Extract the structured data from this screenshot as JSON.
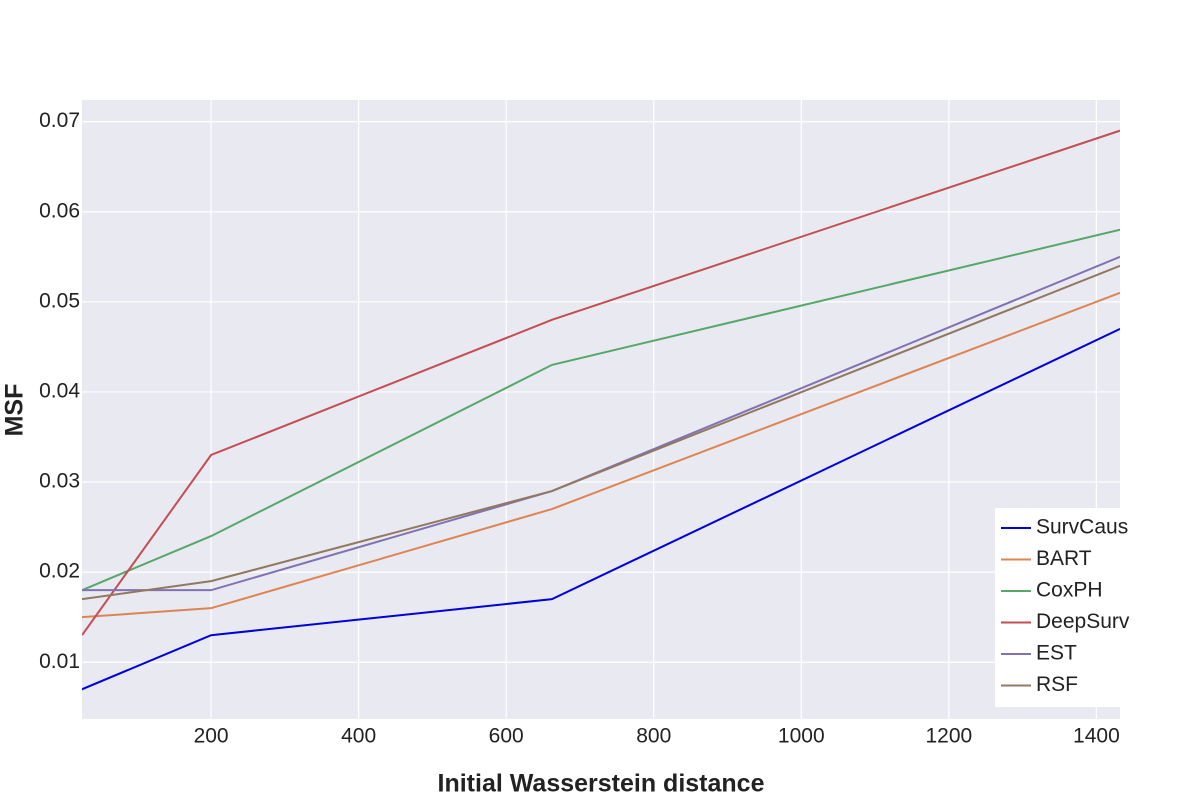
{
  "chart_data": {
    "type": "line",
    "xlabel": "Initial Wasserstein distance",
    "ylabel": "MSF",
    "x": [
      25,
      200,
      662,
      1432
    ],
    "series": [
      {
        "name": "SurvCaus",
        "color": "#0000dd",
        "values": [
          0.007,
          0.013,
          0.017,
          0.047
        ]
      },
      {
        "name": "BART",
        "color": "#dd8452",
        "values": [
          0.015,
          0.016,
          0.027,
          0.051
        ]
      },
      {
        "name": "CoxPH",
        "color": "#55a868",
        "values": [
          0.018,
          0.024,
          0.043,
          0.058
        ]
      },
      {
        "name": "DeepSurv",
        "color": "#c44e52",
        "values": [
          0.013,
          0.033,
          0.048,
          0.069
        ]
      },
      {
        "name": "EST",
        "color": "#8172b3",
        "values": [
          0.018,
          0.018,
          0.029,
          0.055
        ]
      },
      {
        "name": "RSF",
        "color": "#937860",
        "values": [
          0.017,
          0.019,
          0.029,
          0.054
        ]
      }
    ],
    "xlim": [
      25,
      1432
    ],
    "ylim": [
      0.0037,
      0.0724
    ],
    "xticks": [
      200,
      400,
      600,
      800,
      1000,
      1200,
      1400
    ],
    "yticks": [
      0.01,
      0.02,
      0.03,
      0.04,
      0.05,
      0.06,
      0.07
    ],
    "grid": true,
    "legend": "lower right"
  }
}
